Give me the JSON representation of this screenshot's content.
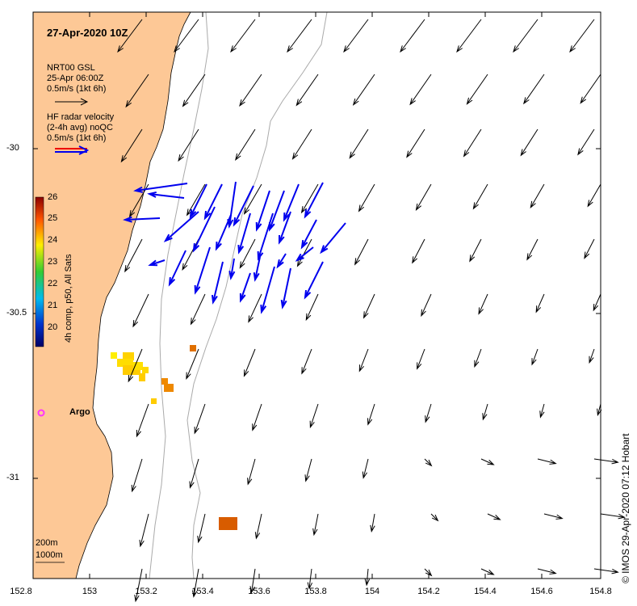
{
  "title": "27-Apr-2020 10Z",
  "legend": {
    "model_line1": "NRT00 GSL",
    "model_line2": "25-Apr 06:00Z",
    "model_line3": "0.5m/s (1kt 6h)",
    "radar_line1": "HF radar velocity",
    "radar_line2": "(2-4h avg) noQC",
    "radar_line3": "0.5m/s (1kt 6h)"
  },
  "colorbar": {
    "label": "4h comp, p50, All Sats",
    "ticks": [
      "26",
      "25",
      "24",
      "23",
      "22",
      "21",
      "20"
    ]
  },
  "x_axis_ticks": [
    "152.8",
    "153",
    "153.2",
    "153.4",
    "153.6",
    "153.8",
    "154",
    "154.2",
    "154.4",
    "154.6",
    "154.8"
  ],
  "y_axis_ticks": [
    "-30",
    "-30.5",
    "-31"
  ],
  "argo_label": "Argo",
  "depth_labels": {
    "d200": "200m",
    "d1000": "1000m"
  },
  "credit": "© IMOS 29-Apr-2020 07:12 Hobart",
  "colors": {
    "land": "#fdc896",
    "radar": "#0000ee",
    "model": "#000000",
    "argo": "#ff33ff",
    "isobath": "#aaaaaa"
  }
}
